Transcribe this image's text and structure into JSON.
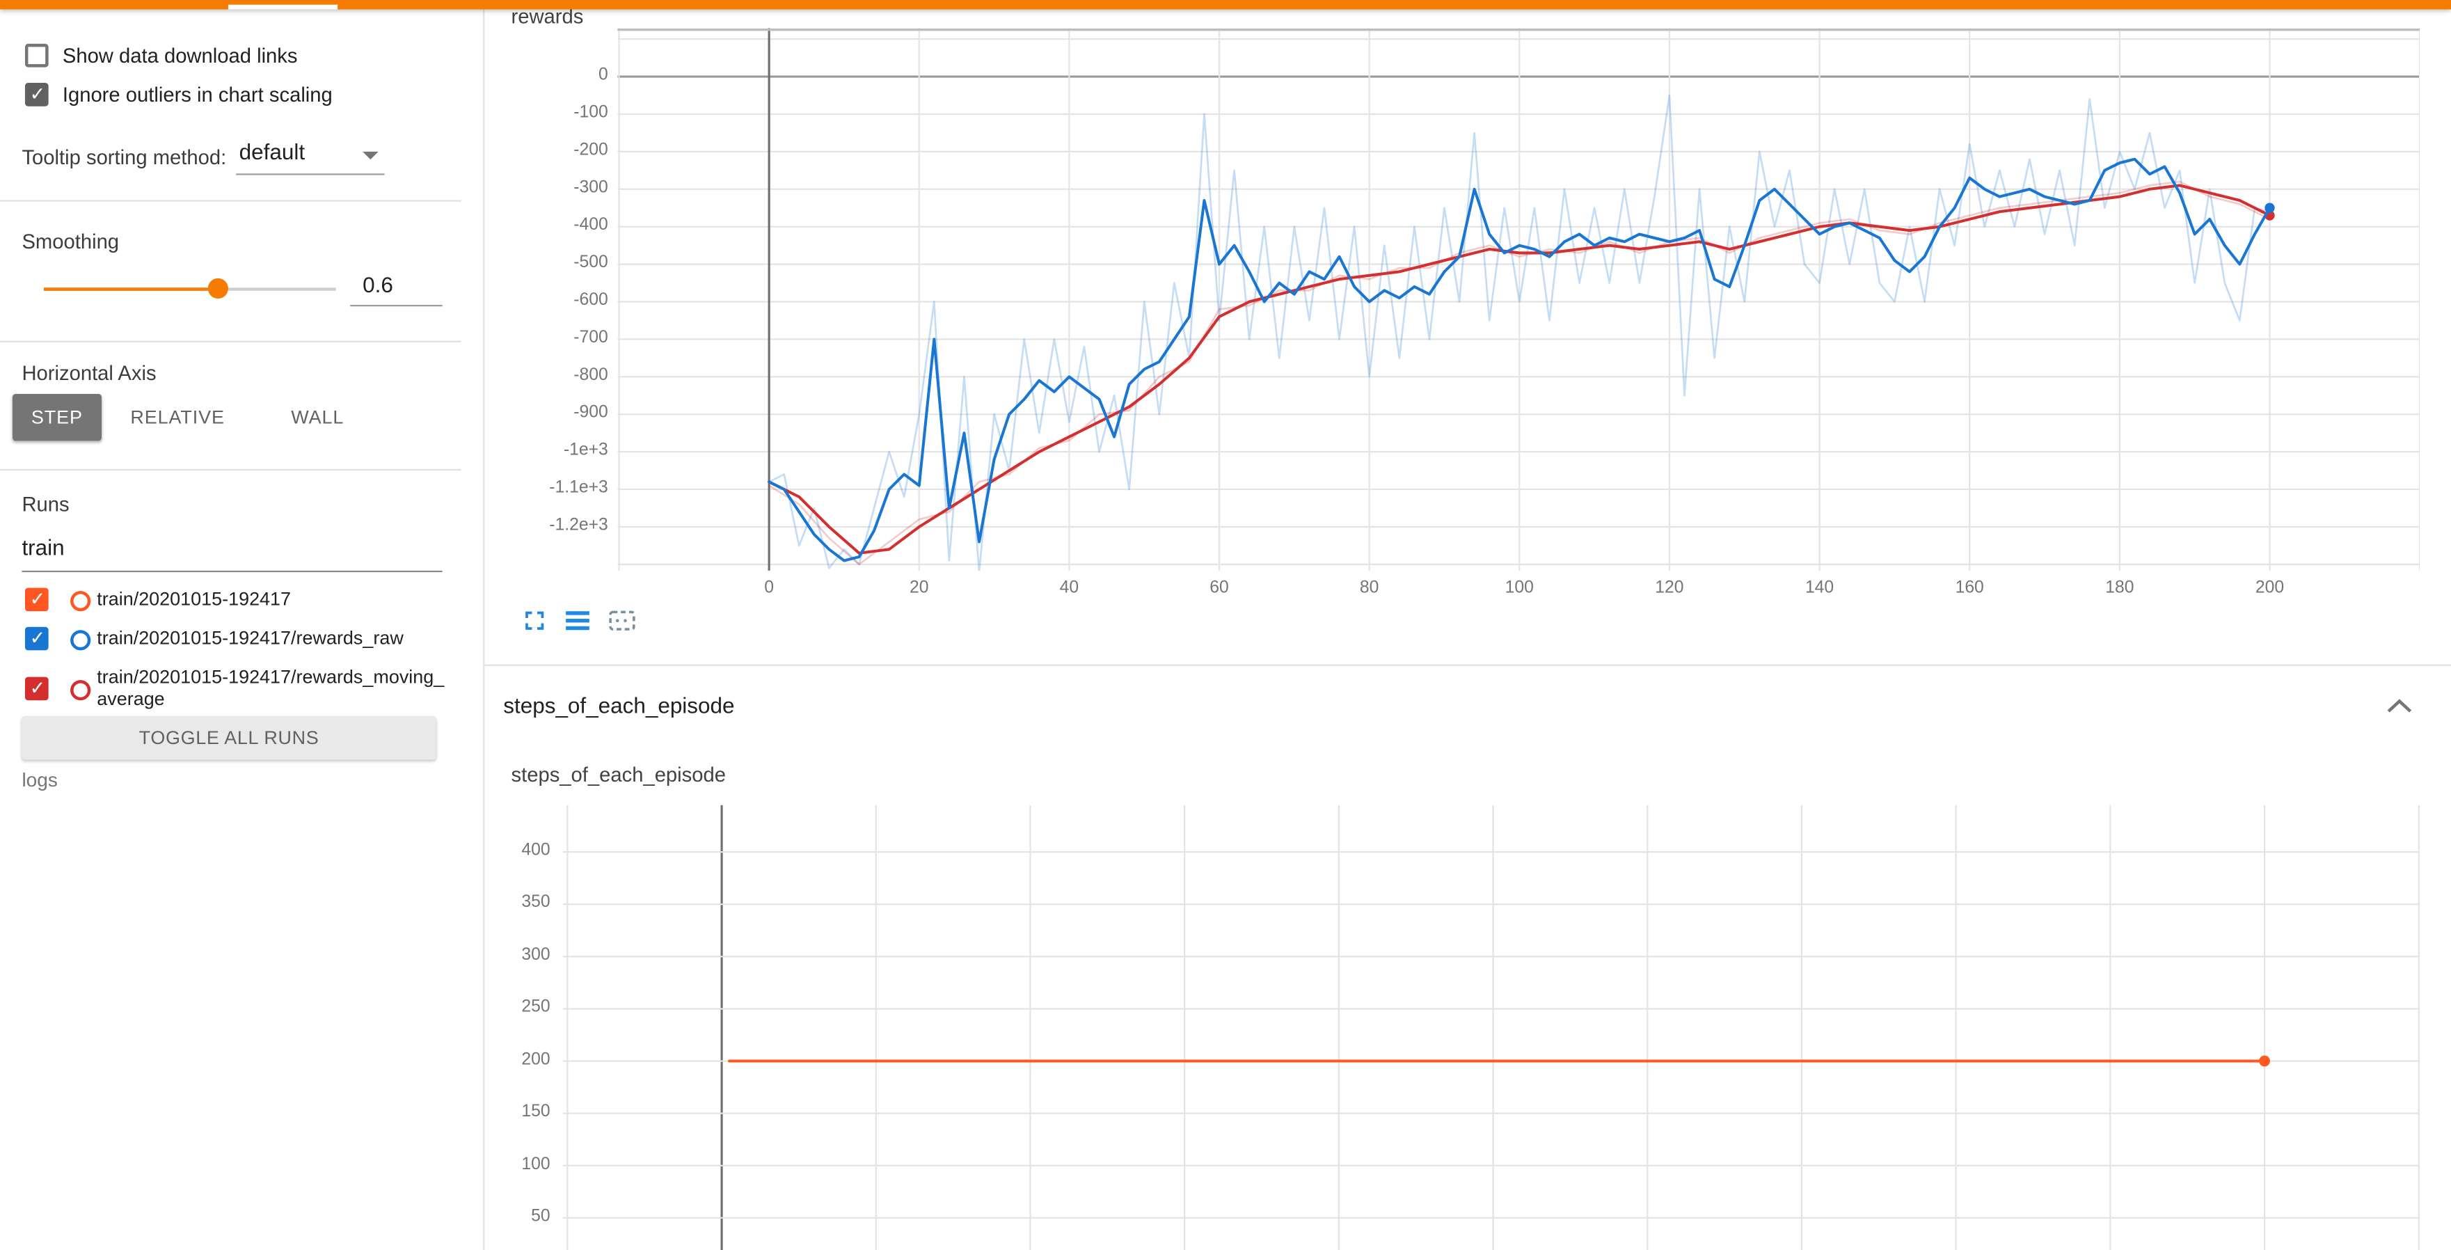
{
  "colors": {
    "header_bar": "#f57c00",
    "accent": "#f57c00",
    "run_colors": [
      "#ff5722",
      "#1976d2",
      "#d32f2f"
    ]
  },
  "icons": {
    "dropdown": "caret-down-icon",
    "chart_toolbar": [
      "expand-icon",
      "data-lines-icon",
      "marquee-select-icon"
    ],
    "section_collapse": "chevron-up-icon"
  },
  "sidebar": {
    "options": [
      {
        "label": "Show data download links",
        "checked": false
      },
      {
        "label": "Ignore outliers in chart scaling",
        "checked": true
      }
    ],
    "tooltip_sorting": {
      "label": "Tooltip sorting method:",
      "value": "default"
    },
    "smoothing": {
      "label": "Smoothing",
      "value": "0.6"
    },
    "horizontal_axis": {
      "label": "Horizontal Axis",
      "options": [
        {
          "label": "STEP",
          "selected": true
        },
        {
          "label": "RELATIVE",
          "selected": false
        },
        {
          "label": "WALL",
          "selected": false
        }
      ]
    },
    "runs": {
      "label": "Runs",
      "filter_value": "train",
      "items": [
        {
          "label": "train/20201015-192417",
          "color": "#ff5722",
          "checked": true
        },
        {
          "label": "train/20201015-192417/rewards_raw",
          "color": "#1976d2",
          "checked": true
        },
        {
          "label": "train/20201015-192417/rewards_moving_average",
          "color": "#d32f2f",
          "checked": true
        }
      ],
      "toggle_all_label": "TOGGLE ALL RUNS"
    },
    "footer_label": "logs"
  },
  "main": {
    "section_title": "steps_of_each_episode"
  },
  "chart_data": [
    {
      "type": "line",
      "title": "rewards",
      "xlim": [
        -20,
        220
      ],
      "ylim": [
        -1317,
        129
      ],
      "grid": true,
      "legend": "none",
      "x_ticks": [
        0,
        20,
        40,
        60,
        80,
        100,
        120,
        140,
        160,
        180,
        200
      ],
      "y_tick_values": [
        0,
        -100,
        -200,
        -300,
        -400,
        -500,
        -600,
        -700,
        -800,
        -900,
        -1000,
        -1100,
        -1200
      ],
      "y_tick_labels": [
        "0",
        "-100",
        "-200",
        "-300",
        "-400",
        "-500",
        "-600",
        "-700",
        "-800",
        "-900",
        "-1e+3",
        "-1.1e+3",
        "-1.2e+3"
      ],
      "series": [
        {
          "name": "train/20201015-192417/rewards_raw (raw)",
          "color": "#1976d2",
          "opacity": 0.25,
          "width": 1.2,
          "x_start": 0,
          "x_step": 2,
          "values": [
            -1080,
            -1060,
            -1250,
            -1150,
            -1310,
            -1260,
            -1300,
            -1150,
            -1000,
            -1120,
            -900,
            -600,
            -1290,
            -800,
            -1320,
            -900,
            -1050,
            -700,
            -950,
            -700,
            -920,
            -720,
            -1000,
            -850,
            -1100,
            -600,
            -900,
            -550,
            -750,
            -100,
            -650,
            -250,
            -700,
            -400,
            -750,
            -400,
            -650,
            -350,
            -700,
            -400,
            -800,
            -450,
            -750,
            -400,
            -700,
            -350,
            -600,
            -150,
            -650,
            -350,
            -600,
            -350,
            -650,
            -300,
            -550,
            -350,
            -550,
            -300,
            -550,
            -320,
            -50,
            -850,
            -300,
            -750,
            -400,
            -600,
            -200,
            -400,
            -250,
            -500,
            -550,
            -300,
            -500,
            -300,
            -550,
            -600,
            -400,
            -600,
            -300,
            -450,
            -180,
            -400,
            -250,
            -400,
            -220,
            -420,
            -250,
            -450,
            -60,
            -350,
            -200,
            -300,
            -150,
            -350,
            -250,
            -550,
            -300,
            -550,
            -650,
            -350,
            -360
          ]
        },
        {
          "name": "train/20201015-192417/rewards_moving_average (raw)",
          "color": "#d32f2f",
          "opacity": 0.25,
          "width": 1.2,
          "x_start": 0,
          "x_step": 4,
          "values": [
            -1090,
            -1140,
            -1230,
            -1300,
            -1240,
            -1180,
            -1160,
            -1080,
            -1060,
            -990,
            -970,
            -900,
            -890,
            -800,
            -760,
            -620,
            -610,
            -570,
            -570,
            -530,
            -540,
            -510,
            -510,
            -470,
            -450,
            -480,
            -460,
            -470,
            -440,
            -470,
            -440,
            -430,
            -470,
            -430,
            -410,
            -390,
            -380,
            -410,
            -420,
            -390,
            -370,
            -350,
            -340,
            -330,
            -320,
            -310,
            -290,
            -280,
            -320,
            -340,
            -380
          ]
        },
        {
          "name": "train/20201015-192417/rewards_moving_average (smoothed)",
          "color": "#d32f2f",
          "opacity": 1,
          "width": 1.8,
          "x_start": 0,
          "x_step": 4,
          "end_dot": true,
          "values": [
            -1080,
            -1120,
            -1200,
            -1270,
            -1260,
            -1200,
            -1150,
            -1100,
            -1050,
            -1000,
            -960,
            -920,
            -880,
            -820,
            -750,
            -640,
            -600,
            -580,
            -560,
            -540,
            -530,
            -520,
            -500,
            -480,
            -460,
            -470,
            -470,
            -460,
            -450,
            -460,
            -450,
            -440,
            -460,
            -440,
            -420,
            -400,
            -390,
            -400,
            -410,
            -400,
            -380,
            -360,
            -350,
            -340,
            -330,
            -320,
            -300,
            -290,
            -310,
            -330,
            -370
          ]
        },
        {
          "name": "train/20201015-192417/rewards_raw (smoothed)",
          "color": "#1976d2",
          "opacity": 1,
          "width": 1.8,
          "x_start": 0,
          "x_step": 2,
          "end_dot": true,
          "values": [
            -1080,
            -1100,
            -1160,
            -1220,
            -1260,
            -1290,
            -1280,
            -1210,
            -1100,
            -1060,
            -1090,
            -700,
            -1150,
            -950,
            -1240,
            -1020,
            -900,
            -860,
            -810,
            -840,
            -800,
            -830,
            -860,
            -960,
            -820,
            -780,
            -760,
            -700,
            -640,
            -330,
            -500,
            -450,
            -520,
            -600,
            -550,
            -580,
            -520,
            -540,
            -480,
            -560,
            -600,
            -570,
            -590,
            -560,
            -580,
            -520,
            -480,
            -300,
            -420,
            -470,
            -450,
            -460,
            -480,
            -440,
            -420,
            -450,
            -430,
            -440,
            -420,
            -430,
            -440,
            -430,
            -410,
            -540,
            -560,
            -450,
            -330,
            -300,
            -340,
            -380,
            -420,
            -400,
            -390,
            -410,
            -430,
            -490,
            -520,
            -480,
            -400,
            -350,
            -270,
            -300,
            -320,
            -310,
            -300,
            -320,
            -330,
            -340,
            -330,
            -250,
            -230,
            -220,
            -260,
            -240,
            -310,
            -420,
            -380,
            -450,
            -500,
            -420,
            -350
          ]
        }
      ]
    },
    {
      "type": "line",
      "title": "steps_of_each_episode",
      "xlim": [
        -20,
        220
      ],
      "ylim": [
        0,
        450
      ],
      "grid": true,
      "legend": "none",
      "x_ticks": [],
      "y_tick_values": [
        400,
        350,
        300,
        250,
        200,
        150,
        100,
        50
      ],
      "y_tick_labels": [
        "400",
        "350",
        "300",
        "250",
        "200",
        "150",
        "100",
        "50"
      ],
      "series": [
        {
          "name": "train/20201015-192417",
          "color": "#ff5722",
          "opacity": 1,
          "width": 1.8,
          "end_dot": true,
          "x": [
            1,
            200
          ],
          "values": [
            200,
            200
          ]
        }
      ]
    }
  ]
}
